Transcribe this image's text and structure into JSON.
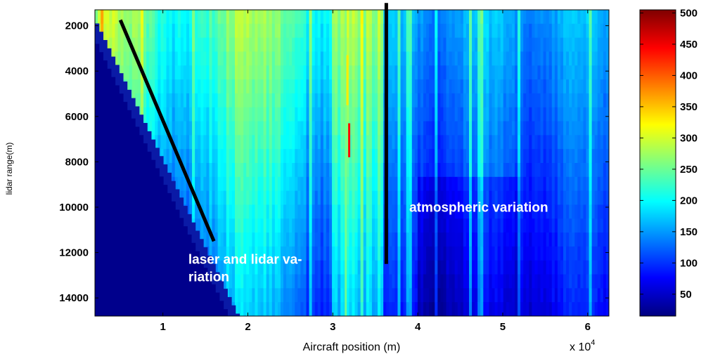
{
  "chart_data": {
    "type": "heatmap",
    "xlabel": "Aircraft position (m)",
    "ylabel": "lidar range(m)",
    "x_multiplier_label": "x 10",
    "x_multiplier_exp": "4",
    "xlim": [
      2000,
      62500
    ],
    "ylim": [
      1300,
      14800
    ],
    "y_reversed": true,
    "x_ticks": [
      10000,
      20000,
      30000,
      40000,
      50000,
      60000
    ],
    "x_tick_labels": [
      "1",
      "2",
      "3",
      "4",
      "5",
      "6"
    ],
    "y_ticks": [
      2000,
      4000,
      6000,
      8000,
      10000,
      12000,
      14000
    ],
    "y_tick_labels": [
      "2000",
      "4000",
      "6000",
      "8000",
      "10000",
      "12000",
      "14000"
    ],
    "colorbar": {
      "range": [
        15,
        505
      ],
      "ticks": [
        50,
        100,
        150,
        200,
        250,
        300,
        350,
        400,
        450,
        500
      ],
      "tick_labels": [
        "50",
        "100",
        "150",
        "200",
        "250",
        "300",
        "350",
        "400",
        "450",
        "500"
      ],
      "colormap": "jet"
    },
    "lines": [
      {
        "name": "laser-lidar-line",
        "x": [
          5000,
          16000
        ],
        "y": [
          1750,
          11500
        ],
        "color": "#000000"
      },
      {
        "name": "atmospheric-line",
        "x": [
          36300,
          36300
        ],
        "y": [
          1000,
          12500
        ],
        "color": "#000000"
      }
    ],
    "annotations": [
      {
        "name": "laser-annotation",
        "lines": [
          "laser and lidar va-",
          "riation"
        ],
        "x": 13000,
        "y": 12500,
        "color": "#ffffff"
      },
      {
        "name": "atmospheric-annotation",
        "lines": [
          "atmospheric variation"
        ],
        "x": 39000,
        "y": 10200,
        "color": "#ffffff"
      }
    ]
  }
}
